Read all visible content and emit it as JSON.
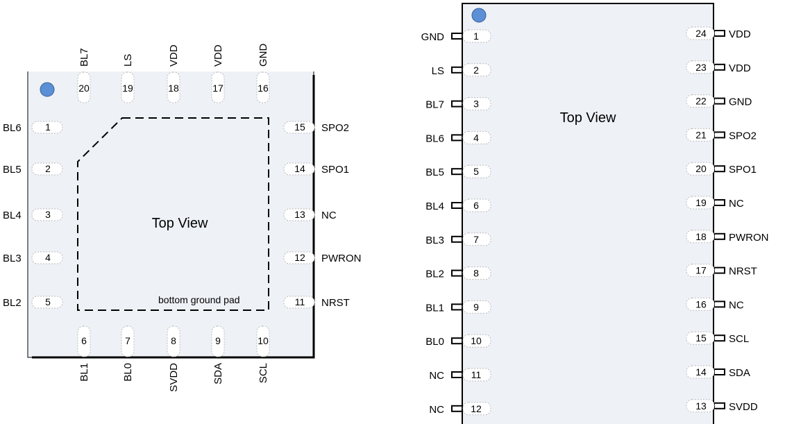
{
  "qfn": {
    "title": "Top View",
    "pad_label": "bottom ground pad",
    "left_pins": [
      {
        "num": "1",
        "name": "BL6"
      },
      {
        "num": "2",
        "name": "BL5"
      },
      {
        "num": "3",
        "name": "BL4"
      },
      {
        "num": "4",
        "name": "BL3"
      },
      {
        "num": "5",
        "name": "BL2"
      }
    ],
    "bottom_pins": [
      {
        "num": "6",
        "name": "BL1"
      },
      {
        "num": "7",
        "name": "BL0"
      },
      {
        "num": "8",
        "name": "SVDD"
      },
      {
        "num": "9",
        "name": "SDA"
      },
      {
        "num": "10",
        "name": "SCL"
      }
    ],
    "right_pins": [
      {
        "num": "15",
        "name": "SPO2"
      },
      {
        "num": "14",
        "name": "SPO1"
      },
      {
        "num": "13",
        "name": "NC"
      },
      {
        "num": "12",
        "name": "PWRON"
      },
      {
        "num": "11",
        "name": "NRST"
      }
    ],
    "top_pins": [
      {
        "num": "20",
        "name": "BL7"
      },
      {
        "num": "19",
        "name": "LS"
      },
      {
        "num": "18",
        "name": "VDD"
      },
      {
        "num": "17",
        "name": "VDD"
      },
      {
        "num": "16",
        "name": "GND"
      }
    ]
  },
  "dip": {
    "title": "Top View",
    "left_pins": [
      {
        "num": "1",
        "name": "GND"
      },
      {
        "num": "2",
        "name": "LS"
      },
      {
        "num": "3",
        "name": "BL7"
      },
      {
        "num": "4",
        "name": "BL6"
      },
      {
        "num": "5",
        "name": "BL5"
      },
      {
        "num": "6",
        "name": "BL4"
      },
      {
        "num": "7",
        "name": "BL3"
      },
      {
        "num": "8",
        "name": "BL2"
      },
      {
        "num": "9",
        "name": "BL1"
      },
      {
        "num": "10",
        "name": "BL0"
      },
      {
        "num": "11",
        "name": "NC"
      },
      {
        "num": "12",
        "name": "NC"
      }
    ],
    "right_pins": [
      {
        "num": "24",
        "name": "VDD"
      },
      {
        "num": "23",
        "name": "VDD"
      },
      {
        "num": "22",
        "name": "GND"
      },
      {
        "num": "21",
        "name": "SPO2"
      },
      {
        "num": "20",
        "name": "SPO1"
      },
      {
        "num": "19",
        "name": "NC"
      },
      {
        "num": "18",
        "name": "PWRON"
      },
      {
        "num": "17",
        "name": "NRST"
      },
      {
        "num": "16",
        "name": "NC"
      },
      {
        "num": "15",
        "name": "SCL"
      },
      {
        "num": "14",
        "name": "SDA"
      },
      {
        "num": "13",
        "name": "SVDD"
      }
    ]
  },
  "colors": {
    "body_fill": "#eef1f6",
    "dot": "#5b8fd6",
    "outline": "#000000",
    "pad_fill": "#ffffff"
  }
}
